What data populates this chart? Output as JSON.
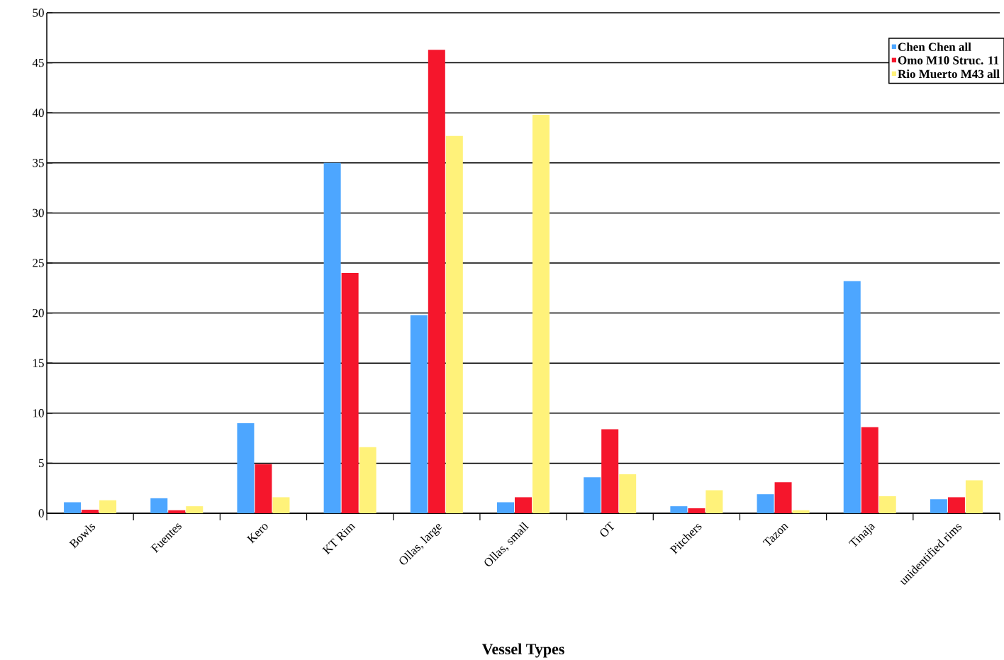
{
  "chart_data": {
    "type": "bar",
    "xlabel": "Vessel Types",
    "categories": [
      "Bowls",
      "Fuentes",
      "Kero",
      "KT Rim",
      "Ollas, large",
      "Ollas, small",
      "OT",
      "Pitchers",
      "Tazon",
      "Tinaja",
      "unidentified rims"
    ],
    "series": [
      {
        "name": "Chen Chen all",
        "color": "#4da6ff",
        "values": [
          1.1,
          1.5,
          9.0,
          35.0,
          19.8,
          1.1,
          3.6,
          0.7,
          1.9,
          23.2,
          1.4
        ]
      },
      {
        "name": "Omo M10 Struc. 11",
        "color": "#f5162c",
        "values": [
          0.35,
          0.3,
          4.9,
          24.0,
          46.3,
          1.6,
          8.4,
          0.5,
          3.1,
          8.6,
          1.6
        ]
      },
      {
        "name": "Rio Muerto M43 all",
        "color": "#fff27a",
        "values": [
          1.3,
          0.7,
          1.6,
          6.6,
          37.7,
          39.8,
          3.9,
          2.3,
          0.3,
          1.7,
          3.3
        ]
      }
    ],
    "ylim": [
      0,
      50
    ],
    "yticks": [
      0,
      5,
      10,
      15,
      20,
      25,
      30,
      35,
      40,
      45,
      50
    ],
    "grid": "y",
    "legend": "top right"
  }
}
